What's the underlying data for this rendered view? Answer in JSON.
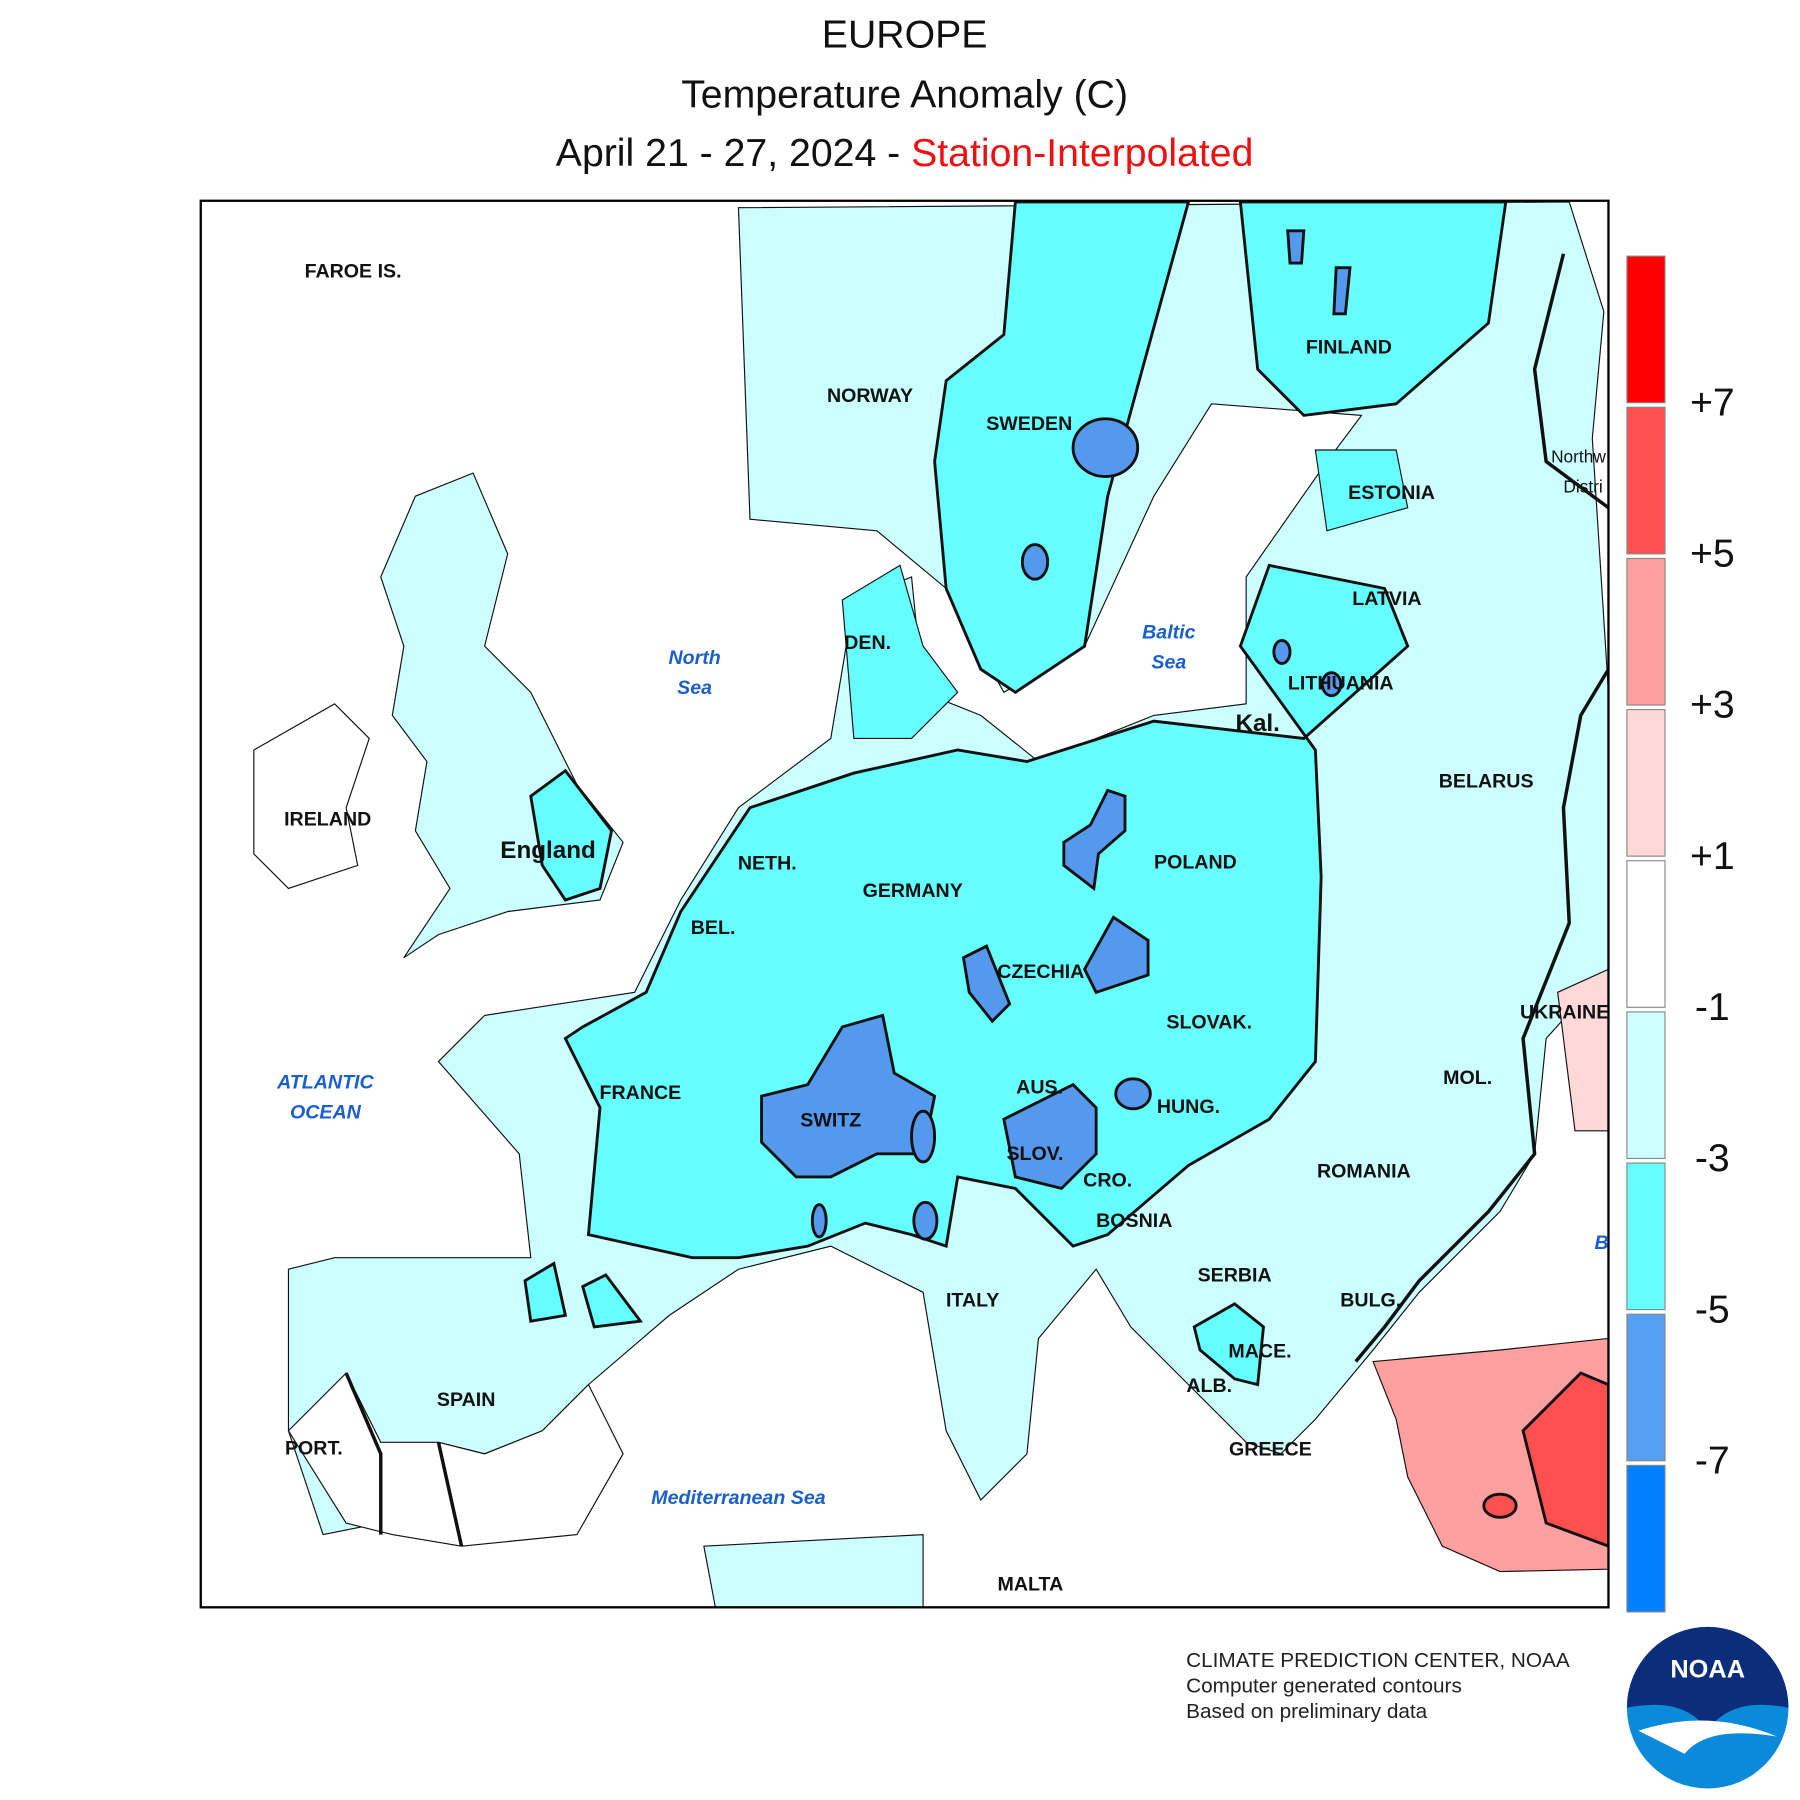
{
  "header": {
    "region": "EUROPE",
    "subtitle": "Temperature Anomaly (C)",
    "period": "April 21 - 27, 2024 - ",
    "method": "Station-Interpolated"
  },
  "map": {
    "labels": [
      "FAROE IS.",
      "NORWAY",
      "SWEDEN",
      "FINLAND",
      "ESTONIA",
      "LATVIA",
      "LITHUANIA",
      "Kal.",
      "BELARUS",
      "Northw",
      "Distri",
      "DEN.",
      "IRELAND",
      "England",
      "NETH.",
      "GERMANY",
      "POLAND",
      "BEL.",
      "CZECHIA",
      "SLOVAK.",
      "UKRAINE",
      "FRANCE",
      "AUS.",
      "HUNG.",
      "MOL.",
      "SWITZ",
      "SLOV.",
      "CRO.",
      "ROMANIA",
      "BOSNIA",
      "SERBIA",
      "ITALY",
      "BULG.",
      "MACE.",
      "ALB.",
      "SPAIN",
      "PORT.",
      "GREECE",
      "MALTA"
    ],
    "sea_labels": [
      [
        "North",
        "Sea"
      ],
      [
        "Baltic",
        "Sea"
      ],
      [
        "ATLANTIC",
        "OCEAN"
      ],
      [
        "Mediterranean Sea"
      ],
      [
        "B"
      ]
    ]
  },
  "legend": {
    "colors": [
      "#ff0000",
      "#ff5050",
      "#ffa0a0",
      "#ffd8d8",
      "#ffffff",
      "#ccffff",
      "#66ffff",
      "#55a0f0",
      "#0080ff"
    ],
    "ticks": [
      "+7",
      "+5",
      "+3",
      "+1",
      "-1",
      "-3",
      "-5",
      "-7"
    ]
  },
  "footer": [
    "CLIMATE PREDICTION CENTER, NOAA",
    "Computer generated contours",
    "Based on preliminary data"
  ],
  "logo": "NOAA"
}
